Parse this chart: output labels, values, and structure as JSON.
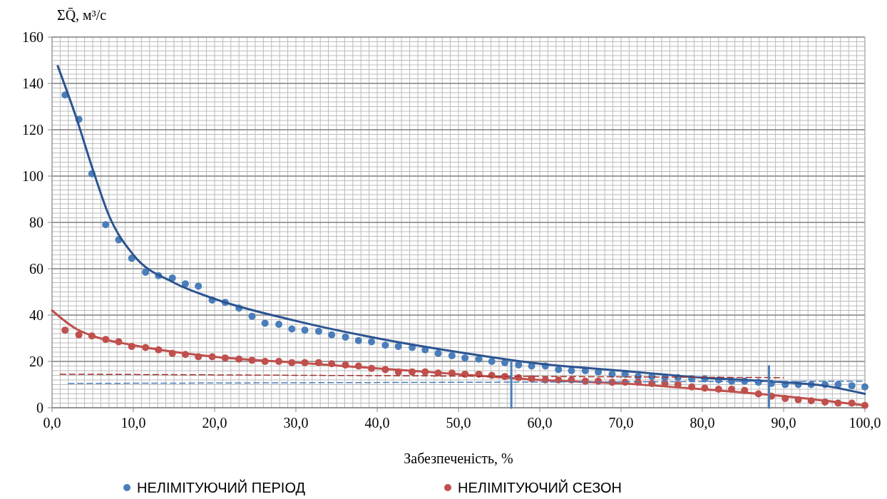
{
  "chart_data": {
    "type": "scatter",
    "ylabel": "ΣQ̄, м³/с",
    "xlabel": "Забезпеченість, %",
    "xlim": [
      0,
      100
    ],
    "ylim": [
      0,
      160
    ],
    "xticks": [
      {
        "value": 0,
        "label": "0,0"
      },
      {
        "value": 10,
        "label": "10,0"
      },
      {
        "value": 20,
        "label": "20,0"
      },
      {
        "value": 30,
        "label": "30,0"
      },
      {
        "value": 40,
        "label": "40,0"
      },
      {
        "value": 50,
        "label": "50,0"
      },
      {
        "value": 60,
        "label": "60,0"
      },
      {
        "value": 70,
        "label": "70,0"
      },
      {
        "value": 80,
        "label": "80,0"
      },
      {
        "value": 90,
        "label": "90,0"
      },
      {
        "value": 100,
        "label": "100,0"
      }
    ],
    "yticks": [
      0,
      20,
      40,
      60,
      80,
      100,
      120,
      140,
      160
    ],
    "grid": true,
    "legend": "bottom",
    "x": [
      1.6,
      3.3,
      4.9,
      6.6,
      8.2,
      9.8,
      11.5,
      13.1,
      14.8,
      16.4,
      18.0,
      19.7,
      21.3,
      23.0,
      24.6,
      26.2,
      27.9,
      29.5,
      31.1,
      32.8,
      34.4,
      36.1,
      37.7,
      39.3,
      41.0,
      42.6,
      44.3,
      45.9,
      47.5,
      49.2,
      50.8,
      52.5,
      54.1,
      55.7,
      57.4,
      59.0,
      60.7,
      62.3,
      63.9,
      65.6,
      67.2,
      68.9,
      70.5,
      72.1,
      73.8,
      75.4,
      77.0,
      78.7,
      80.3,
      82.0,
      83.6,
      85.2,
      86.9,
      88.5,
      90.2,
      91.8,
      93.4,
      95.1,
      96.7,
      98.4,
      100.0
    ],
    "series": [
      {
        "name": "НЕЛІМІТУЮЧИЙ ПЕРІОД",
        "color": "#4a7ebb",
        "marker": "circle",
        "values": [
          135,
          124.5,
          101,
          79,
          72.5,
          64.5,
          58.5,
          57,
          56,
          53.5,
          52.5,
          46.5,
          45.5,
          43,
          39.5,
          36.5,
          36,
          34,
          33.5,
          33,
          31.5,
          30.5,
          29,
          28.5,
          27,
          26.5,
          26,
          25,
          23.5,
          22.5,
          21.5,
          21,
          20,
          19.5,
          18.5,
          18,
          18,
          16.5,
          16,
          16,
          15.5,
          14.5,
          14.5,
          13.5,
          13.5,
          13,
          13,
          12.5,
          12.5,
          12,
          11.5,
          11.5,
          11,
          10.5,
          10,
          10,
          10,
          10,
          10,
          9.5,
          9
        ]
      },
      {
        "name": "НЕЛІМІТУЮЧИЙ СЕЗОН",
        "color": "#c0504d",
        "marker": "circle",
        "values": [
          33.5,
          31.5,
          31,
          29.5,
          28.5,
          26.5,
          26,
          25,
          23.5,
          23,
          22,
          22,
          21.5,
          21,
          20.5,
          20,
          20,
          19.5,
          19.5,
          19.5,
          19,
          18.5,
          18,
          17,
          16.5,
          15.5,
          15.5,
          15.5,
          15,
          15,
          14.5,
          14.5,
          14,
          13.5,
          13,
          12.5,
          12,
          12,
          12,
          11.5,
          11.5,
          11,
          11,
          11,
          10.5,
          10.5,
          10,
          9,
          8.5,
          8,
          8,
          7.5,
          6,
          5,
          4,
          3.5,
          3,
          2.5,
          2,
          2,
          1
        ]
      },
      {
        "type": "line",
        "color": "#2c5491",
        "x": [
          0.7,
          3,
          5,
          7,
          10,
          15,
          20,
          30,
          40,
          50,
          60,
          70,
          80,
          90,
          95,
          100
        ],
        "values": [
          147.5,
          125,
          103,
          83,
          66,
          54,
          47,
          37.5,
          30,
          24,
          19,
          16,
          13,
          11,
          9.5,
          6
        ]
      },
      {
        "type": "line",
        "color": "#c0504d",
        "x": [
          0,
          3,
          5,
          10,
          20,
          30,
          40,
          50,
          60,
          70,
          80,
          90,
          100
        ],
        "values": [
          42,
          34,
          31,
          27,
          22,
          19.5,
          17,
          14.5,
          12,
          10.5,
          8,
          5,
          1
        ]
      },
      {
        "type": "line",
        "color": "#a0302d",
        "line_style": "dashed",
        "x": [
          1,
          90
        ],
        "values": [
          14.5,
          13
        ]
      },
      {
        "type": "line",
        "color": "#4a7ebb",
        "line_style": "dashed",
        "x": [
          2,
          100
        ],
        "values": [
          10.5,
          11.5
        ]
      },
      {
        "type": "line",
        "color": "#4a7ebb",
        "x": [
          56.5,
          56.5
        ],
        "values": [
          0,
          20
        ]
      },
      {
        "type": "line",
        "color": "#4a7ebb",
        "x": [
          88.2,
          88.2
        ],
        "values": [
          0,
          18
        ]
      }
    ]
  }
}
